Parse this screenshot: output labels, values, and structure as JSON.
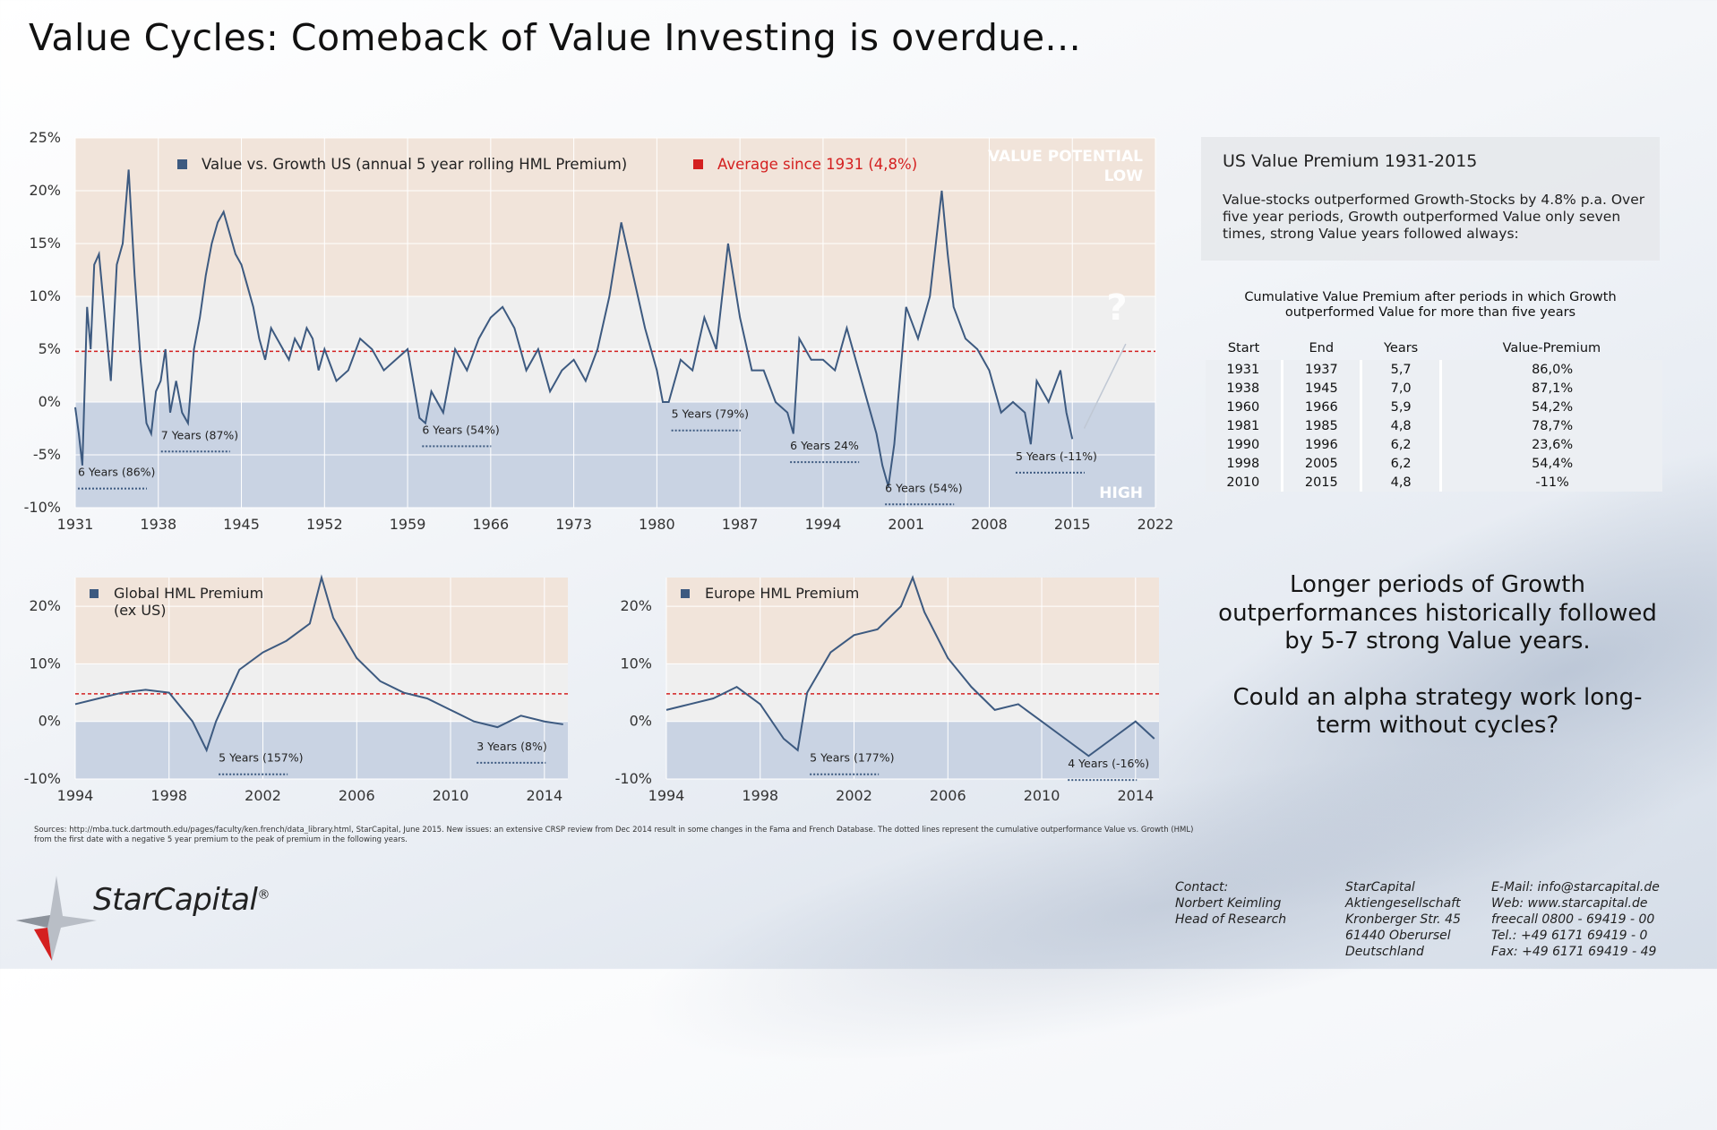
{
  "title": "Value Cycles: Comeback of Value Investing is overdue...",
  "colors": {
    "series": "#3d5a80",
    "average": "#d42020",
    "band_high": "#f1e4da",
    "band_mid": "#efefef",
    "band_low": "#c9d3e3",
    "grid": "#ffffff"
  },
  "chart_data": [
    {
      "type": "line",
      "x_unit": "year",
      "series": [
        {
          "name": "Value vs. Growth US (annual 5 year rolling HML Premium)",
          "values_desc": "",
          "x": [
            1931,
            1931.3,
            1931.6,
            1932,
            1932.3,
            1932.6,
            1933,
            1933.5,
            1934,
            1934.5,
            1935,
            1935.5,
            1936,
            1936.5,
            1937,
            1937.4,
            1937.8,
            1938.2,
            1938.6,
            1939,
            1939.5,
            1940,
            1940.5,
            1941,
            1941.5,
            1942,
            1942.5,
            1943,
            1943.5,
            1944,
            1944.5,
            1945,
            1945.5,
            1946,
            1946.5,
            1947,
            1947.5,
            1948,
            1948.5,
            1949,
            1949.5,
            1950,
            1950.5,
            1951,
            1951.5,
            1952,
            1953,
            1954,
            1955,
            1956,
            1957,
            1958,
            1959,
            1960,
            1960.5,
            1961,
            1962,
            1963,
            1964,
            1965,
            1966,
            1967,
            1968,
            1969,
            1970,
            1971,
            1972,
            1973,
            1974,
            1975,
            1976,
            1977,
            1978,
            1979,
            1980,
            1980.5,
            1981,
            1982,
            1983,
            1984,
            1985,
            1986,
            1987,
            1988,
            1989,
            1990,
            1991,
            1991.5,
            1992,
            1993,
            1994,
            1995,
            1996,
            1997,
            1998,
            1998.5,
            1999,
            1999.5,
            2000,
            2001,
            2002,
            2003,
            2004,
            2004.5,
            2005,
            2006,
            2007,
            2008,
            2009,
            2010,
            2011,
            2011.5,
            2012,
            2013,
            2014,
            2014.5,
            2015
          ],
          "y": [
            -0.5,
            -3,
            -6,
            9,
            5,
            13,
            14,
            8,
            2,
            13,
            15,
            22,
            12,
            4,
            -2,
            -3,
            1,
            2,
            5,
            -1,
            2,
            -1,
            -2,
            5,
            8,
            12,
            15,
            17,
            18,
            16,
            14,
            13,
            11,
            9,
            6,
            4,
            7,
            6,
            5,
            4,
            6,
            5,
            7,
            6,
            3,
            5,
            2,
            3,
            6,
            5,
            3,
            4,
            5,
            -1.5,
            -2,
            1,
            -1,
            5,
            3,
            6,
            8,
            9,
            7,
            3,
            5,
            1,
            3,
            4,
            2,
            5,
            10,
            17,
            12,
            7,
            3,
            0,
            0,
            4,
            3,
            8,
            5,
            15,
            8,
            3,
            3,
            0,
            -1,
            -3,
            6,
            4,
            4,
            3,
            7,
            3,
            -1,
            -3,
            -6,
            -8,
            -4,
            9,
            6,
            10,
            20,
            14,
            9,
            6,
            5,
            3,
            -1,
            0,
            -1,
            -4,
            2,
            0,
            3,
            -1,
            -3.5
          ]
        },
        {
          "name": "Average since 1931 (4,8%)",
          "y": 4.8
        }
      ],
      "xlim": [
        1931,
        2022
      ],
      "ylim": [
        -10,
        25
      ],
      "xticks": [
        "1931",
        "1938",
        "1945",
        "1952",
        "1959",
        "1966",
        "1973",
        "1980",
        "1987",
        "1994",
        "2001",
        "2008",
        "2015",
        "2022"
      ],
      "yticks": [
        "25%",
        "20%",
        "15%",
        "10%",
        "5%",
        "0%",
        "-5%",
        "-10%"
      ],
      "band_labels": {
        "top": "VALUE POTENTIAL\nLOW",
        "bottom": "HIGH"
      },
      "question_mark": "?",
      "annotations": [
        {
          "text": "6 Years (86%)",
          "x": 1931,
          "y": -7
        },
        {
          "text": "7 Years (87%)",
          "x": 1938,
          "y": -3.5
        },
        {
          "text": "6 Years (54%)",
          "x": 1960,
          "y": -3
        },
        {
          "text": "5 Years (79%)",
          "x": 1981,
          "y": -1.5
        },
        {
          "text": "6 Years 24%",
          "x": 1991,
          "y": -4.5
        },
        {
          "text": "6 Years (54%)",
          "x": 1999,
          "y": -8.5
        },
        {
          "text": "5 Years (-11%)",
          "x": 2010,
          "y": -5.5
        }
      ]
    },
    {
      "type": "line",
      "series": [
        {
          "name": "Global HML Premium\n(ex US)",
          "x": [
            1994,
            1995,
            1996,
            1997,
            1998,
            1999,
            1999.6,
            2000,
            2001,
            2002,
            2003,
            2004,
            2004.5,
            2005,
            2006,
            2007,
            2008,
            2009,
            2010,
            2011,
            2012,
            2013,
            2014,
            2014.8
          ],
          "y": [
            3,
            4,
            5,
            5.5,
            5,
            0,
            -5,
            0,
            9,
            12,
            14,
            17,
            25,
            18,
            11,
            7,
            5,
            4,
            2,
            0,
            -1,
            1,
            0,
            -0.5
          ]
        }
      ],
      "xlim": [
        1994,
        2015
      ],
      "ylim": [
        -10,
        25
      ],
      "xticks": [
        "1994",
        "1998",
        "2002",
        "2006",
        "2010",
        "2014"
      ],
      "yticks": [
        "20%",
        "10%",
        "0%",
        "-10%"
      ],
      "annotations": [
        {
          "text": "5 Years (157%)",
          "x": 2000,
          "y": -7
        },
        {
          "text": "3 Years (8%)",
          "x": 2011,
          "y": -5
        }
      ]
    },
    {
      "type": "line",
      "series": [
        {
          "name": "Europe HML Premium",
          "x": [
            1994,
            1995,
            1996,
            1997,
            1998,
            1999,
            1999.6,
            2000,
            2001,
            2002,
            2003,
            2004,
            2004.5,
            2005,
            2006,
            2007,
            2008,
            2009,
            2010,
            2011,
            2012,
            2013,
            2014,
            2014.8
          ],
          "y": [
            2,
            3,
            4,
            6,
            3,
            -3,
            -5,
            5,
            12,
            15,
            16,
            20,
            25,
            19,
            11,
            6,
            2,
            3,
            0,
            -3,
            -6,
            -3,
            0,
            -3
          ]
        }
      ],
      "xlim": [
        1994,
        2015
      ],
      "ylim": [
        -10,
        25
      ],
      "xticks": [
        "1994",
        "1998",
        "2002",
        "2006",
        "2010",
        "2014"
      ],
      "yticks": [
        "20%",
        "10%",
        "0%",
        "-10%"
      ],
      "annotations": [
        {
          "text": "5 Years (177%)",
          "x": 2000,
          "y": -7
        },
        {
          "text": "4 Years (-16%)",
          "x": 2011,
          "y": -8
        }
      ]
    }
  ],
  "info": {
    "title": "US Value Premium 1931-2015",
    "text": "Value-stocks outperformed Growth-Stocks by 4.8% p.a. Over five year periods, Growth outperformed Value only seven times, strong Value years followed always:"
  },
  "table": {
    "title": "Cumulative Value Premium after periods in which Growth outperformed Value for more than five years",
    "headers": [
      "Start",
      "End",
      "Years",
      "Value-Premium"
    ],
    "rows": [
      [
        "1931",
        "1937",
        "5,7",
        "86,0%"
      ],
      [
        "1938",
        "1945",
        "7,0",
        "87,1%"
      ],
      [
        "1960",
        "1966",
        "5,9",
        "54,2%"
      ],
      [
        "1981",
        "1985",
        "4,8",
        "78,7%"
      ],
      [
        "1990",
        "1996",
        "6,2",
        "23,6%"
      ],
      [
        "1998",
        "2005",
        "6,2",
        "54,4%"
      ],
      [
        "2010",
        "2015",
        "4,8",
        "-11%"
      ]
    ]
  },
  "note": {
    "line1": "Longer periods of Growth outperformances historically followed by 5-7 strong Value years.",
    "line2": "Could an alpha strategy work long-term without cycles?"
  },
  "sources": "Sources: http://mba.tuck.dartmouth.edu/pages/faculty/ken.french/data_library.html, StarCapital, June 2015. New issues: an extensive CRSP review from Dec 2014 result in some changes in the Fama and French Database. The dotted lines represent the cumulative outperformance Value vs. Growth (HML) from the first date with a negative 5 year premium to the peak of premium in the following years.",
  "footer": {
    "logo": "StarCapital",
    "logo_mark": "®",
    "contact_col1": [
      "Contact:",
      "Norbert Keimling",
      "Head of Research"
    ],
    "contact_col2": [
      "StarCapital",
      "Aktiengesellschaft",
      "Kronberger Str. 45",
      "61440 Oberursel",
      "Deutschland"
    ],
    "contact_col3": [
      "E-Mail: info@starcapital.de",
      "Web: www.starcapital.de",
      "freecall 0800 - 69419 - 00",
      "Tel.: +49 6171 69419 - 0",
      "Fax: +49 6171 69419 - 49"
    ]
  }
}
